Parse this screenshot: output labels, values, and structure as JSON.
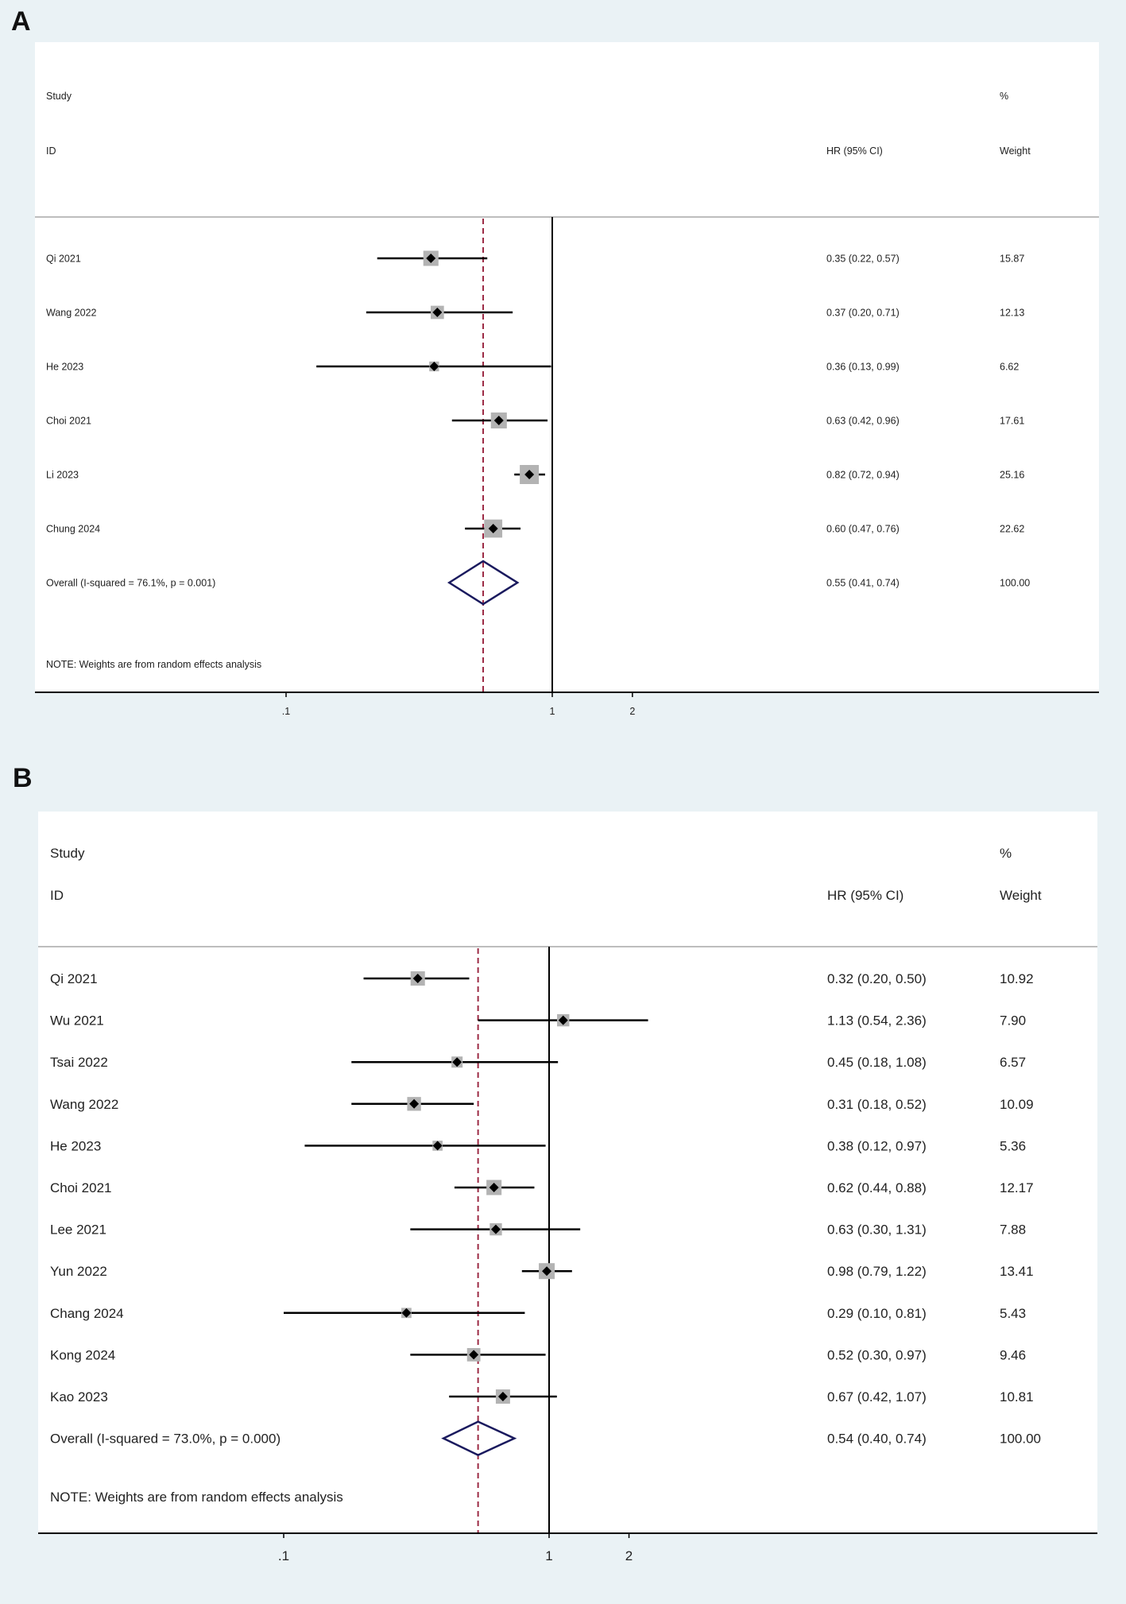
{
  "panels": [
    {
      "letter": "A",
      "header": {
        "study": "Study",
        "id": "ID",
        "effect": "HR (95% CI)",
        "pct": "%",
        "weight": "Weight"
      },
      "chart_data": {
        "type": "forest",
        "scale": "log",
        "x_ticks": [
          ".1",
          "1",
          "2"
        ],
        "x_tick_values": [
          0.1,
          1,
          2
        ],
        "reference_line": 1,
        "overall_line": 0.55,
        "studies": [
          {
            "label": "Qi 2021",
            "hr": 0.35,
            "lower": 0.22,
            "upper": 0.57,
            "ci_text": "0.35 (0.22, 0.57)",
            "weight": "15.87"
          },
          {
            "label": "Wang 2022",
            "hr": 0.37,
            "lower": 0.2,
            "upper": 0.71,
            "ci_text": "0.37 (0.20, 0.71)",
            "weight": "12.13"
          },
          {
            "label": "He 2023",
            "hr": 0.36,
            "lower": 0.13,
            "upper": 0.99,
            "ci_text": "0.36 (0.13, 0.99)",
            "weight": "6.62"
          },
          {
            "label": "Choi 2021",
            "hr": 0.63,
            "lower": 0.42,
            "upper": 0.96,
            "ci_text": "0.63 (0.42, 0.96)",
            "weight": "17.61"
          },
          {
            "label": "Li 2023",
            "hr": 0.82,
            "lower": 0.72,
            "upper": 0.94,
            "ci_text": "0.82 (0.72, 0.94)",
            "weight": "25.16"
          },
          {
            "label": "Chung 2024",
            "hr": 0.6,
            "lower": 0.47,
            "upper": 0.76,
            "ci_text": "0.60 (0.47, 0.76)",
            "weight": "22.62"
          }
        ],
        "overall": {
          "label": "Overall  (I-squared = 76.1%, p = 0.001)",
          "hr": 0.55,
          "lower": 0.41,
          "upper": 0.74,
          "ci_text": "0.55 (0.41, 0.74)",
          "weight": "100.00"
        },
        "note": "NOTE: Weights are from random effects analysis"
      }
    },
    {
      "letter": "B",
      "header": {
        "study": "Study",
        "id": "ID",
        "effect": "HR (95% CI)",
        "pct": "%",
        "weight": "Weight"
      },
      "chart_data": {
        "type": "forest",
        "scale": "log",
        "x_ticks": [
          ".1",
          "1",
          "2"
        ],
        "x_tick_values": [
          0.1,
          1,
          2
        ],
        "reference_line": 1,
        "overall_line": 0.54,
        "studies": [
          {
            "label": "Qi 2021",
            "hr": 0.32,
            "lower": 0.2,
            "upper": 0.5,
            "ci_text": "0.32 (0.20, 0.50)",
            "weight": "10.92"
          },
          {
            "label": "Wu 2021",
            "hr": 1.13,
            "lower": 0.54,
            "upper": 2.36,
            "ci_text": "1.13 (0.54, 2.36)",
            "weight": "7.90"
          },
          {
            "label": "Tsai 2022",
            "hr": 0.45,
            "lower": 0.18,
            "upper": 1.08,
            "ci_text": "0.45 (0.18, 1.08)",
            "weight": "6.57"
          },
          {
            "label": "Wang 2022",
            "hr": 0.31,
            "lower": 0.18,
            "upper": 0.52,
            "ci_text": "0.31 (0.18, 0.52)",
            "weight": "10.09"
          },
          {
            "label": "He 2023",
            "hr": 0.38,
            "lower": 0.12,
            "upper": 0.97,
            "ci_text": "0.38 (0.12, 0.97)",
            "weight": "5.36"
          },
          {
            "label": "Choi 2021",
            "hr": 0.62,
            "lower": 0.44,
            "upper": 0.88,
            "ci_text": "0.62 (0.44, 0.88)",
            "weight": "12.17"
          },
          {
            "label": "Lee 2021",
            "hr": 0.63,
            "lower": 0.3,
            "upper": 1.31,
            "ci_text": "0.63 (0.30, 1.31)",
            "weight": "7.88"
          },
          {
            "label": "Yun 2022",
            "hr": 0.98,
            "lower": 0.79,
            "upper": 1.22,
            "ci_text": "0.98 (0.79, 1.22)",
            "weight": "13.41"
          },
          {
            "label": "Chang 2024",
            "hr": 0.29,
            "lower": 0.1,
            "upper": 0.81,
            "ci_text": "0.29 (0.10, 0.81)",
            "weight": "5.43"
          },
          {
            "label": "Kong 2024",
            "hr": 0.52,
            "lower": 0.3,
            "upper": 0.97,
            "ci_text": "0.52 (0.30, 0.97)",
            "weight": "9.46"
          },
          {
            "label": "Kao 2023",
            "hr": 0.67,
            "lower": 0.42,
            "upper": 1.07,
            "ci_text": "0.67 (0.42, 1.07)",
            "weight": "10.81"
          }
        ],
        "overall": {
          "label": "Overall  (I-squared = 73.0%, p = 0.000)",
          "hr": 0.54,
          "lower": 0.4,
          "upper": 0.74,
          "ci_text": "0.54 (0.40, 0.74)",
          "weight": "100.00"
        },
        "note": "NOTE: Weights are from random effects analysis"
      }
    }
  ],
  "colors": {
    "background": "#eaf2f5",
    "panel": "#ffffff",
    "ci_line": "#000000",
    "weight_box": "#b3b3b3",
    "point": "#000000",
    "overall_diamond": "#1a1a5e",
    "overall_line": "#9c2a44",
    "axis": "#000000"
  }
}
